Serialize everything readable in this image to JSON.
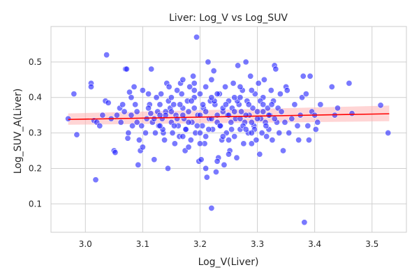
{
  "chart_data": {
    "type": "scatter",
    "title": "Liver: Log_V vs Log_SUV",
    "xlabel": "Log_V(Liver)",
    "ylabel": "Log_SUV_A(Liver)",
    "xlim": [
      2.94,
      3.56
    ],
    "ylim": [
      0.02,
      0.6
    ],
    "xticks": [
      3.0,
      3.1,
      3.2,
      3.3,
      3.4,
      3.5
    ],
    "yticks": [
      0.1,
      0.2,
      0.3,
      0.4,
      0.5
    ],
    "xtick_labels": [
      "3.0",
      "3.1",
      "3.2",
      "3.3",
      "3.4",
      "3.5"
    ],
    "ytick_labels": [
      "0.1",
      "0.2",
      "0.3",
      "0.4",
      "0.5"
    ],
    "grid": true,
    "point_color": "#2020ff",
    "point_edge_color": "#ffffff",
    "point_alpha": 0.6,
    "fit_line_color": "#ff0000",
    "ci_band_color": "#ffb3b3",
    "fit": {
      "x": [
        2.97,
        3.53
      ],
      "y": [
        0.338,
        0.354
      ],
      "ci_lower": [
        0.323,
        0.333
      ],
      "ci_upper": [
        0.355,
        0.377
      ]
    },
    "points": [
      [
        2.97,
        0.34
      ],
      [
        2.98,
        0.41
      ],
      [
        2.985,
        0.295
      ],
      [
        3.01,
        0.44
      ],
      [
        3.01,
        0.43
      ],
      [
        3.015,
        0.335
      ],
      [
        3.018,
        0.168
      ],
      [
        3.02,
        0.33
      ],
      [
        3.025,
        0.32
      ],
      [
        3.03,
        0.35
      ],
      [
        3.035,
        0.39
      ],
      [
        3.037,
        0.52
      ],
      [
        3.04,
        0.385
      ],
      [
        3.045,
        0.34
      ],
      [
        3.05,
        0.25
      ],
      [
        3.052,
        0.245
      ],
      [
        3.055,
        0.35
      ],
      [
        3.06,
        0.37
      ],
      [
        3.062,
        0.33
      ],
      [
        3.065,
        0.38
      ],
      [
        3.068,
        0.36
      ],
      [
        3.07,
        0.48
      ],
      [
        3.072,
        0.48
      ],
      [
        3.074,
        0.285
      ],
      [
        3.075,
        0.3
      ],
      [
        3.077,
        0.415
      ],
      [
        3.08,
        0.4
      ],
      [
        3.082,
        0.32
      ],
      [
        3.085,
        0.43
      ],
      [
        3.087,
        0.38
      ],
      [
        3.09,
        0.36
      ],
      [
        3.092,
        0.21
      ],
      [
        3.094,
        0.28
      ],
      [
        3.096,
        0.25
      ],
      [
        3.098,
        0.32
      ],
      [
        3.1,
        0.42
      ],
      [
        3.1,
        0.26
      ],
      [
        3.105,
        0.3
      ],
      [
        3.107,
        0.34
      ],
      [
        3.11,
        0.41
      ],
      [
        3.112,
        0.38
      ],
      [
        3.114,
        0.355
      ],
      [
        3.115,
        0.48
      ],
      [
        3.117,
        0.33
      ],
      [
        3.12,
        0.225
      ],
      [
        3.122,
        0.3
      ],
      [
        3.124,
        0.4
      ],
      [
        3.126,
        0.36
      ],
      [
        3.128,
        0.32
      ],
      [
        3.13,
        0.38
      ],
      [
        3.132,
        0.41
      ],
      [
        3.134,
        0.34
      ],
      [
        3.136,
        0.3
      ],
      [
        3.138,
        0.28
      ],
      [
        3.14,
        0.36
      ],
      [
        3.142,
        0.44
      ],
      [
        3.144,
        0.2
      ],
      [
        3.146,
        0.43
      ],
      [
        3.148,
        0.37
      ],
      [
        3.15,
        0.33
      ],
      [
        3.152,
        0.3
      ],
      [
        3.154,
        0.38
      ],
      [
        3.156,
        0.27
      ],
      [
        3.158,
        0.35
      ],
      [
        3.16,
        0.42
      ],
      [
        3.162,
        0.32
      ],
      [
        3.164,
        0.29
      ],
      [
        3.166,
        0.44
      ],
      [
        3.168,
        0.41
      ],
      [
        3.17,
        0.37
      ],
      [
        3.172,
        0.34
      ],
      [
        3.174,
        0.25
      ],
      [
        3.176,
        0.31
      ],
      [
        3.178,
        0.39
      ],
      [
        3.18,
        0.36
      ],
      [
        3.182,
        0.43
      ],
      [
        3.184,
        0.28
      ],
      [
        3.186,
        0.33
      ],
      [
        3.188,
        0.46
      ],
      [
        3.19,
        0.4
      ],
      [
        3.192,
        0.3
      ],
      [
        3.194,
        0.57
      ],
      [
        3.196,
        0.35
      ],
      [
        3.198,
        0.22
      ],
      [
        3.2,
        0.41
      ],
      [
        3.202,
        0.225
      ],
      [
        3.204,
        0.32
      ],
      [
        3.206,
        0.37
      ],
      [
        3.208,
        0.27
      ],
      [
        3.21,
        0.43
      ],
      [
        3.212,
        0.175
      ],
      [
        3.214,
        0.5
      ],
      [
        3.216,
        0.34
      ],
      [
        3.218,
        0.39
      ],
      [
        3.22,
        0.088
      ],
      [
        3.222,
        0.31
      ],
      [
        3.224,
        0.475
      ],
      [
        3.226,
        0.38
      ],
      [
        3.228,
        0.19
      ],
      [
        3.23,
        0.35
      ],
      [
        3.232,
        0.23
      ],
      [
        3.234,
        0.41
      ],
      [
        3.236,
        0.32
      ],
      [
        3.238,
        0.28
      ],
      [
        3.24,
        0.36
      ],
      [
        3.242,
        0.21
      ],
      [
        3.244,
        0.43
      ],
      [
        3.246,
        0.3
      ],
      [
        3.248,
        0.35
      ],
      [
        3.25,
        0.39
      ],
      [
        3.252,
        0.25
      ],
      [
        3.254,
        0.33
      ],
      [
        3.256,
        0.37
      ],
      [
        3.258,
        0.44
      ],
      [
        3.26,
        0.29
      ],
      [
        3.262,
        0.34
      ],
      [
        3.264,
        0.23
      ],
      [
        3.266,
        0.49
      ],
      [
        3.268,
        0.38
      ],
      [
        3.27,
        0.31
      ],
      [
        3.272,
        0.36
      ],
      [
        3.274,
        0.42
      ],
      [
        3.276,
        0.27
      ],
      [
        3.278,
        0.33
      ],
      [
        3.28,
        0.5
      ],
      [
        3.282,
        0.39
      ],
      [
        3.284,
        0.3
      ],
      [
        3.286,
        0.35
      ],
      [
        3.288,
        0.46
      ],
      [
        3.29,
        0.27
      ],
      [
        3.292,
        0.37
      ],
      [
        3.294,
        0.32
      ],
      [
        3.296,
        0.41
      ],
      [
        3.298,
        0.28
      ],
      [
        3.3,
        0.36
      ],
      [
        3.302,
        0.44
      ],
      [
        3.304,
        0.24
      ],
      [
        3.306,
        0.34
      ],
      [
        3.308,
        0.3
      ],
      [
        3.31,
        0.4
      ],
      [
        3.312,
        0.45
      ],
      [
        3.314,
        0.33
      ],
      [
        3.316,
        0.29
      ],
      [
        3.318,
        0.37
      ],
      [
        3.32,
        0.31
      ],
      [
        3.322,
        0.35
      ],
      [
        3.324,
        0.42
      ],
      [
        3.326,
        0.28
      ],
      [
        3.328,
        0.39
      ],
      [
        3.33,
        0.49
      ],
      [
        3.332,
        0.48
      ],
      [
        3.334,
        0.33
      ],
      [
        3.336,
        0.37
      ],
      [
        3.338,
        0.3
      ],
      [
        3.34,
        0.41
      ],
      [
        3.342,
        0.36
      ],
      [
        3.345,
        0.25
      ],
      [
        3.348,
        0.33
      ],
      [
        3.35,
        0.43
      ],
      [
        3.352,
        0.42
      ],
      [
        3.355,
        0.3
      ],
      [
        3.36,
        0.34
      ],
      [
        3.365,
        0.38
      ],
      [
        3.37,
        0.32
      ],
      [
        3.372,
        0.28
      ],
      [
        3.375,
        0.35
      ],
      [
        3.378,
        0.4
      ],
      [
        3.38,
        0.46
      ],
      [
        3.382,
        0.048
      ],
      [
        3.385,
        0.41
      ],
      [
        3.388,
        0.32
      ],
      [
        3.39,
        0.28
      ],
      [
        3.392,
        0.46
      ],
      [
        3.395,
        0.36
      ],
      [
        3.4,
        0.35
      ],
      [
        3.402,
        0.31
      ],
      [
        3.405,
        0.33
      ],
      [
        3.41,
        0.38
      ],
      [
        3.43,
        0.43
      ],
      [
        3.435,
        0.35
      ],
      [
        3.44,
        0.37
      ],
      [
        3.46,
        0.44
      ],
      [
        3.465,
        0.355
      ],
      [
        3.515,
        0.378
      ],
      [
        3.528,
        0.3
      ],
      [
        3.14,
        0.35
      ],
      [
        3.15,
        0.36
      ],
      [
        3.16,
        0.34
      ],
      [
        3.17,
        0.35
      ],
      [
        3.18,
        0.33
      ],
      [
        3.19,
        0.37
      ],
      [
        3.2,
        0.35
      ],
      [
        3.21,
        0.36
      ],
      [
        3.22,
        0.34
      ],
      [
        3.23,
        0.33
      ],
      [
        3.24,
        0.37
      ],
      [
        3.25,
        0.35
      ],
      [
        3.26,
        0.36
      ],
      [
        3.27,
        0.34
      ],
      [
        3.28,
        0.35
      ],
      [
        3.29,
        0.33
      ],
      [
        3.3,
        0.34
      ],
      [
        3.31,
        0.36
      ],
      [
        3.32,
        0.35
      ],
      [
        3.33,
        0.34
      ],
      [
        3.135,
        0.31
      ],
      [
        3.145,
        0.39
      ],
      [
        3.155,
        0.32
      ],
      [
        3.165,
        0.38
      ],
      [
        3.175,
        0.31
      ],
      [
        3.185,
        0.39
      ],
      [
        3.195,
        0.32
      ],
      [
        3.205,
        0.38
      ],
      [
        3.215,
        0.31
      ],
      [
        3.225,
        0.39
      ],
      [
        3.235,
        0.32
      ],
      [
        3.245,
        0.38
      ],
      [
        3.255,
        0.31
      ],
      [
        3.265,
        0.39
      ],
      [
        3.275,
        0.32
      ],
      [
        3.285,
        0.38
      ],
      [
        3.295,
        0.31
      ],
      [
        3.305,
        0.39
      ],
      [
        3.315,
        0.32
      ],
      [
        3.325,
        0.38
      ],
      [
        3.12,
        0.34
      ],
      [
        3.13,
        0.32
      ],
      [
        3.15,
        0.4
      ],
      [
        3.17,
        0.29
      ],
      [
        3.19,
        0.42
      ],
      [
        3.21,
        0.29
      ],
      [
        3.23,
        0.41
      ],
      [
        3.25,
        0.28
      ],
      [
        3.27,
        0.4
      ],
      [
        3.29,
        0.3
      ],
      [
        3.08,
        0.35
      ],
      [
        3.09,
        0.33
      ],
      [
        3.11,
        0.37
      ],
      [
        3.13,
        0.35
      ],
      [
        3.2,
        0.3
      ],
      [
        3.22,
        0.4
      ],
      [
        3.24,
        0.29
      ],
      [
        3.26,
        0.4
      ],
      [
        3.28,
        0.31
      ],
      [
        3.31,
        0.38
      ],
      [
        3.18,
        0.26
      ],
      [
        3.2,
        0.27
      ],
      [
        3.21,
        0.2
      ],
      [
        3.23,
        0.22
      ],
      [
        3.25,
        0.24
      ],
      [
        3.19,
        0.44
      ],
      [
        3.22,
        0.45
      ],
      [
        3.17,
        0.45
      ],
      [
        3.27,
        0.43
      ],
      [
        3.29,
        0.42
      ]
    ]
  }
}
